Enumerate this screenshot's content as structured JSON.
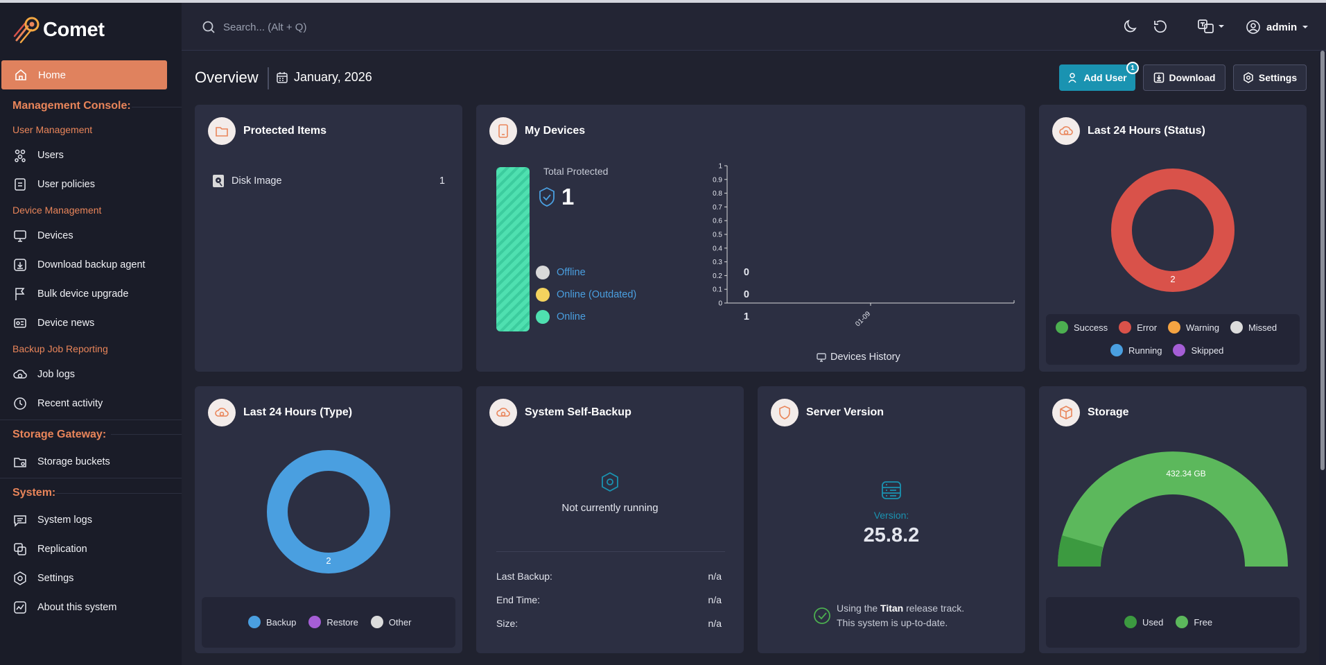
{
  "app": {
    "name": "Comet"
  },
  "sidebar": {
    "home_label": "Home",
    "sections": {
      "management": "Management Console:",
      "storage": "Storage Gateway:",
      "system": "System:"
    },
    "groups": {
      "user_mgmt": "User Management",
      "device_mgmt": "Device Management",
      "backup_reporting": "Backup Job Reporting"
    },
    "items": {
      "users": "Users",
      "user_policies": "User policies",
      "devices": "Devices",
      "download_agent": "Download backup agent",
      "bulk_upgrade": "Bulk device upgrade",
      "device_news": "Device news",
      "job_logs": "Job logs",
      "recent_activity": "Recent activity",
      "storage_buckets": "Storage buckets",
      "system_logs": "System logs",
      "replication": "Replication",
      "settings": "Settings",
      "about": "About this system"
    }
  },
  "topbar": {
    "search_placeholder": "Search... (Alt + Q)",
    "user": "admin"
  },
  "overview": {
    "title": "Overview",
    "date": "January, 2026",
    "buttons": {
      "add_user": "Add User",
      "add_user_badge": "1",
      "download": "Download",
      "settings": "Settings"
    }
  },
  "protected_items": {
    "title": "Protected Items",
    "rows": [
      {
        "label": "Disk Image",
        "count": "1"
      }
    ]
  },
  "my_devices": {
    "title": "My Devices",
    "total_label": "Total Protected",
    "total_value": "1",
    "statuses": [
      {
        "label": "Offline",
        "value": "0",
        "color": "#d9d9d9"
      },
      {
        "label": "Online (Outdated)",
        "value": "0",
        "color": "#f4d35e"
      },
      {
        "label": "Online",
        "value": "1",
        "color": "#4fe0b0"
      }
    ],
    "history_label": "Devices History"
  },
  "last24_status": {
    "title": "Last 24 Hours (Status)",
    "center_value": "2",
    "ring_color": "#d9524a",
    "legend": [
      {
        "label": "Success",
        "color": "#4caf50"
      },
      {
        "label": "Error",
        "color": "#d9524a"
      },
      {
        "label": "Warning",
        "color": "#f5a442"
      },
      {
        "label": "Missed",
        "color": "#dcdcdc"
      },
      {
        "label": "Running",
        "color": "#4a9fe0"
      },
      {
        "label": "Skipped",
        "color": "#a55ed6"
      }
    ]
  },
  "last24_type": {
    "title": "Last 24 Hours (Type)",
    "center_value": "2",
    "ring_color": "#4a9fe0",
    "legend": [
      {
        "label": "Backup",
        "color": "#4a9fe0"
      },
      {
        "label": "Restore",
        "color": "#a55ed6"
      },
      {
        "label": "Other",
        "color": "#dcdcdc"
      }
    ]
  },
  "self_backup": {
    "title": "System Self-Backup",
    "status": "Not currently running",
    "rows": [
      {
        "label": "Last Backup:",
        "value": "n/a"
      },
      {
        "label": "End Time:",
        "value": "n/a"
      },
      {
        "label": "Size:",
        "value": "n/a"
      }
    ]
  },
  "server_version": {
    "title": "Server Version",
    "version_label": "Version:",
    "version": "25.8.2",
    "track_prefix": "Using the ",
    "track_name": "Titan",
    "track_suffix": " release track.",
    "uptodate": "This system is up-to-date."
  },
  "storage": {
    "title": "Storage",
    "free_label": "432.34 GB",
    "legend": [
      {
        "label": "Used",
        "color": "#3c9a40"
      },
      {
        "label": "Free",
        "color": "#5cb85c"
      }
    ]
  },
  "chart_data": {
    "type": "line",
    "x": [
      "01-09"
    ],
    "series": [],
    "ylim": [
      0,
      1
    ],
    "yticks": [
      "0",
      "0.1",
      "0.2",
      "0.3",
      "0.4",
      "0.5",
      "0.6",
      "0.7",
      "0.8",
      "0.9",
      "1"
    ],
    "xlabel": "Devices History",
    "grid": false
  }
}
